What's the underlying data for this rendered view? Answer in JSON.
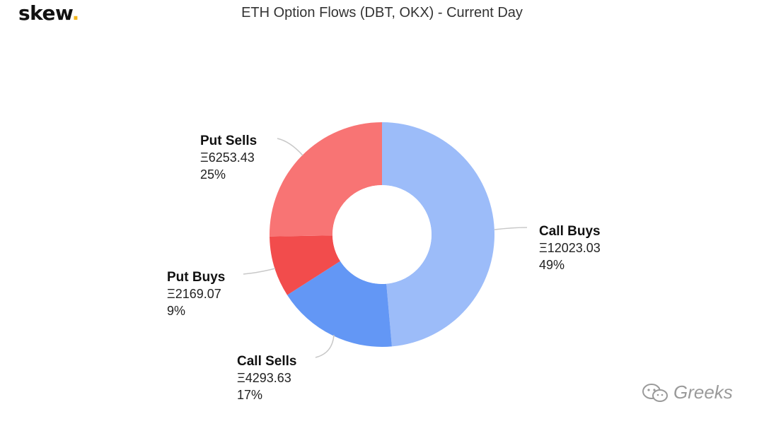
{
  "logo": {
    "text": "skew",
    "dot": "."
  },
  "watermark": {
    "text": "Greeks",
    "icon": "wechat-icon"
  },
  "chart_data": {
    "type": "pie",
    "title": "ETH Option Flows (DBT, OKX) - Current Day",
    "donut": true,
    "slices": [
      {
        "name": "Call Buys",
        "value": 12023.03,
        "value_label": "Ξ12023.03",
        "percent_label": "49%",
        "color": "#9cbcf9"
      },
      {
        "name": "Call Sells",
        "value": 4293.63,
        "value_label": "Ξ4293.63",
        "percent_label": "17%",
        "color": "#6397f5"
      },
      {
        "name": "Put Buys",
        "value": 2169.07,
        "value_label": "Ξ2169.07",
        "percent_label": "9%",
        "color": "#f24c4c"
      },
      {
        "name": "Put Sells",
        "value": 6253.43,
        "value_label": "Ξ6253.43",
        "percent_label": "25%",
        "color": "#f87474"
      }
    ]
  }
}
